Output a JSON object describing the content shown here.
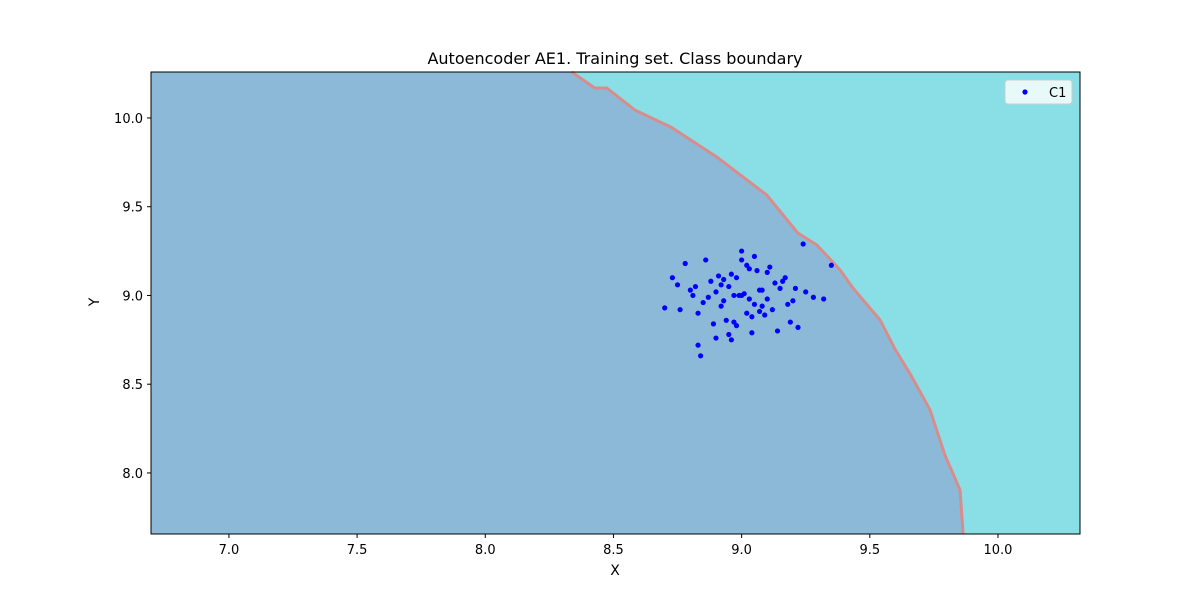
{
  "chart_data": {
    "type": "scatter",
    "title": "Autoencoder AE1. Training set. Class boundary",
    "xlabel": "X",
    "ylabel": "Y",
    "xlim": [
      6.696,
      10.32
    ],
    "ylim": [
      7.656,
      10.259
    ],
    "xticks": [
      {
        "value": 7,
        "label": "7.0"
      },
      {
        "value": 7.5,
        "label": "7.5"
      },
      {
        "value": 8,
        "label": "8.0"
      },
      {
        "value": 8.5,
        "label": "8.5"
      },
      {
        "value": 9,
        "label": "9.0"
      },
      {
        "value": 9.5,
        "label": "9.5"
      },
      {
        "value": 10,
        "label": "10.0"
      }
    ],
    "yticks": [
      {
        "value": 8,
        "label": "8.0"
      },
      {
        "value": 8.5,
        "label": "8.5"
      },
      {
        "value": 9,
        "label": "9.0"
      },
      {
        "value": 9.5,
        "label": "9.5"
      },
      {
        "value": 10,
        "label": "10.0"
      }
    ],
    "legend": "upper right",
    "region_colors": [
      "#8db9d8",
      "#8adfe6"
    ],
    "boundary": {
      "color": "#d98c8c",
      "x": [
        8.337,
        8.427,
        8.474,
        8.583,
        8.724,
        8.903,
        9.098,
        9.219,
        9.293,
        9.384,
        9.434,
        9.54,
        9.6,
        9.66,
        9.735,
        9.793,
        9.852,
        9.864
      ],
      "y": [
        10.259,
        10.169,
        10.169,
        10.045,
        9.949,
        9.78,
        9.566,
        9.352,
        9.285,
        9.144,
        9.042,
        8.862,
        8.693,
        8.552,
        8.355,
        8.101,
        7.904,
        7.656
      ]
    },
    "series": [
      {
        "name": "C1",
        "color": "#0000ff",
        "x": [
          9.0,
          8.95,
          9.05,
          8.9,
          9.1,
          8.98,
          9.02,
          8.93,
          9.07,
          8.88,
          9.12,
          8.85,
          9.15,
          8.97,
          9.03,
          8.92,
          9.08,
          8.96,
          9.04,
          8.99,
          9.01,
          8.87,
          9.13,
          8.94,
          9.06,
          8.91,
          9.09,
          8.8,
          9.2,
          8.78,
          9.22,
          8.75,
          9.25,
          8.83,
          9.17,
          8.86,
          9.14,
          8.89,
          9.11,
          9.0,
          8.95,
          9.05,
          8.9,
          9.1,
          8.98,
          9.02,
          8.93,
          9.07,
          8.82,
          9.18,
          8.7,
          9.35,
          9.32,
          8.83,
          9.24,
          8.73,
          9.28,
          8.76,
          9.19,
          8.84,
          9.16,
          8.81,
          9.21,
          8.96,
          9.04,
          9.0,
          8.97,
          9.03,
          8.92,
          9.08
        ],
        "values": [
          9.0,
          9.05,
          8.95,
          9.02,
          8.98,
          9.1,
          8.9,
          8.97,
          9.03,
          9.08,
          8.92,
          8.96,
          9.04,
          8.85,
          9.15,
          9.06,
          8.94,
          9.12,
          8.88,
          9.0,
          9.01,
          8.99,
          9.07,
          8.86,
          9.14,
          9.11,
          8.89,
          9.03,
          8.97,
          9.18,
          8.82,
          9.06,
          9.02,
          8.9,
          9.1,
          9.2,
          8.8,
          8.84,
          9.16,
          9.25,
          8.78,
          9.22,
          8.76,
          9.13,
          8.83,
          9.17,
          9.09,
          8.91,
          9.05,
          8.95,
          8.93,
          9.17,
          8.98,
          8.72,
          9.29,
          9.1,
          8.99,
          8.92,
          8.85,
          8.66,
          9.08,
          9.0,
          9.04,
          8.75,
          8.79,
          9.2,
          9.0,
          8.98,
          8.94,
          9.03
        ]
      }
    ]
  }
}
